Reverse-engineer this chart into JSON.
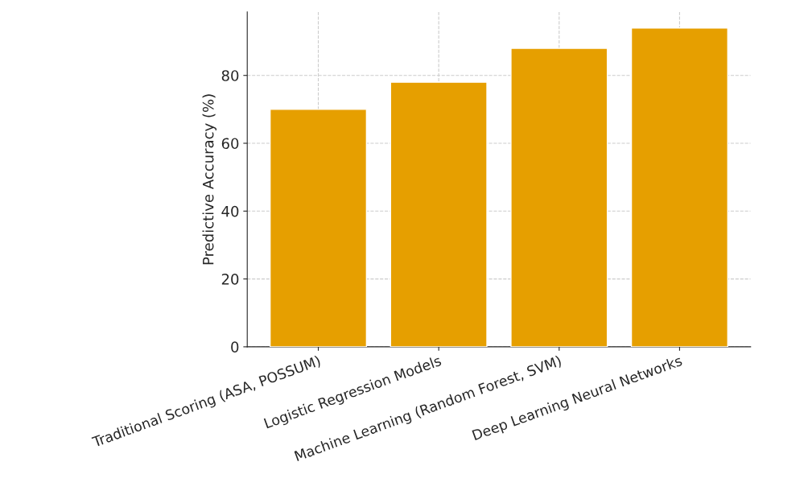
{
  "chart_data": {
    "type": "bar",
    "categories": [
      "Traditional Scoring (ASA, POSSUM)",
      "Logistic Regression Models",
      "Machine Learning (Random Forest, SVM)",
      "Deep Learning Neural Networks"
    ],
    "values": [
      70,
      78,
      88,
      94
    ],
    "color": "#e69f00",
    "ylabel": "Predictive Accuracy (%)",
    "ylim": [
      0,
      98.7
    ],
    "yticks": [
      0,
      20,
      40,
      60,
      80
    ],
    "grid": true,
    "line_style": "dashed"
  }
}
